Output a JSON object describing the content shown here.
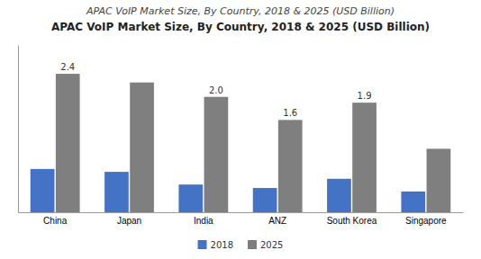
{
  "chart_data": {
    "type": "bar",
    "subtitle": "APAC VoIP Market Size, By Country, 2018 & 2025 (USD Billion)",
    "title": "APAC VoIP Market Size, By Country, 2018 & 2025 (USD Billion)",
    "categories": [
      "China",
      "Japan",
      "India",
      "ANZ",
      "South Korea",
      "Singapore"
    ],
    "series": [
      {
        "name": "2018",
        "color": "#4472C4",
        "values": [
          0.75,
          0.7,
          0.48,
          0.42,
          0.58,
          0.36
        ]
      },
      {
        "name": "2025",
        "color": "#7F7F7F",
        "values": [
          2.4,
          2.25,
          2.0,
          1.6,
          1.9,
          1.1
        ],
        "data_labels": true,
        "value_labels": [
          "2.4",
          null,
          "2.0",
          "1.6",
          "1.9",
          null
        ]
      }
    ],
    "ylim": [
      0,
      2.9
    ],
    "yticks": [],
    "tick_labels": "x",
    "grid": false,
    "legend": "bottom"
  }
}
